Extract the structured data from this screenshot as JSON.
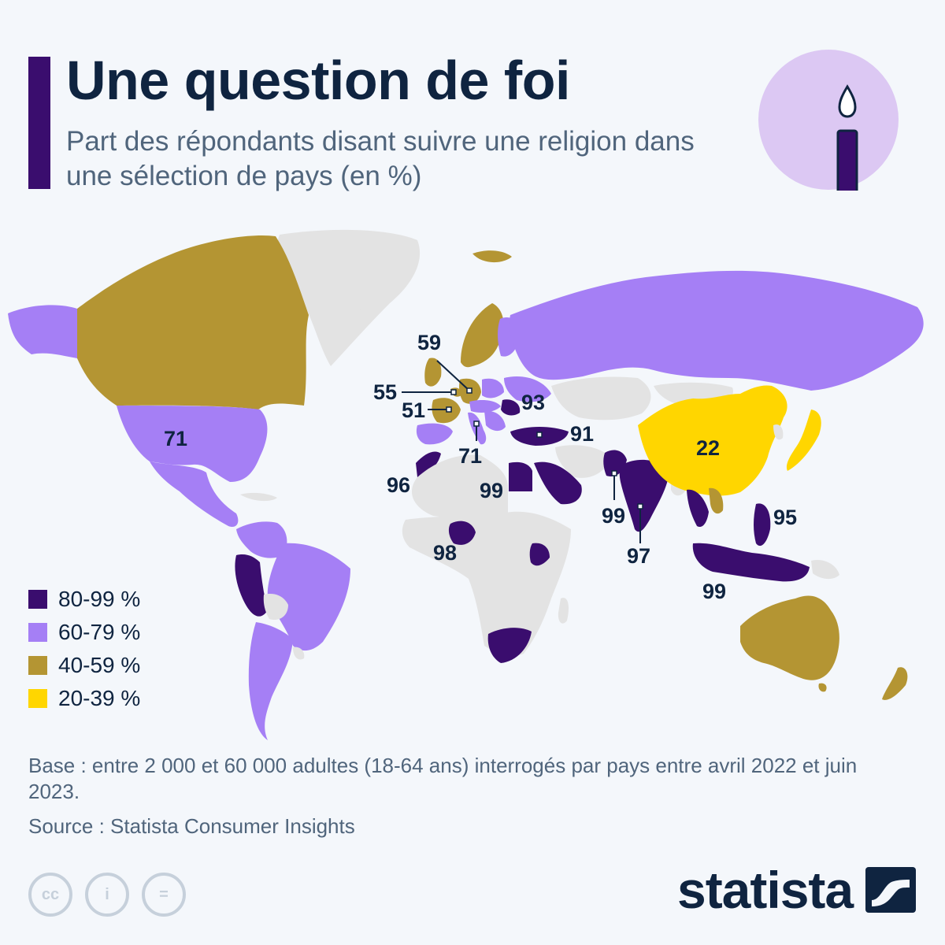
{
  "header": {
    "title": "Une question de foi",
    "subtitle": "Part des répondants disant suivre une religion dans une sélection de pays (en %)"
  },
  "icons": {
    "badge": "candle-icon"
  },
  "colors": {
    "band_80_99": "#3a0d6e",
    "band_60_79": "#a57ff5",
    "band_40_59": "#b49533",
    "band_20_39": "#ffd600",
    "no_data": "#e3e3e3",
    "title": "#0f2440",
    "accent": "#3a0d6e",
    "badge_circle": "#dcc8f3"
  },
  "legend": [
    {
      "label": "80-99 %",
      "color": "#3a0d6e"
    },
    {
      "label": "60-79 %",
      "color": "#a57ff5"
    },
    {
      "label": "40-59 %",
      "color": "#b49533"
    },
    {
      "label": "20-39 %",
      "color": "#ffd600"
    }
  ],
  "map_values": {
    "usa": "71",
    "france": "51",
    "belgium": "55",
    "germany": "59",
    "romania": "93",
    "italy": "71",
    "turkey": "91",
    "morocco": "96",
    "egypt": "99",
    "nigeria": "98",
    "pakistan": "99",
    "india": "97",
    "china": "22",
    "philippines": "95",
    "indonesia": "99"
  },
  "footer": {
    "base": "Base : entre 2 000 et 60 000 adultes (18-64 ans) interrogés par pays entre avril 2022 et juin 2023.",
    "source": "Source : Statista Consumer Insights",
    "license_icons": [
      "cc-icon",
      "attribution-icon",
      "no-derivatives-icon"
    ],
    "license_glyphs": [
      "cc",
      "i",
      "="
    ],
    "brand": "statista"
  }
}
